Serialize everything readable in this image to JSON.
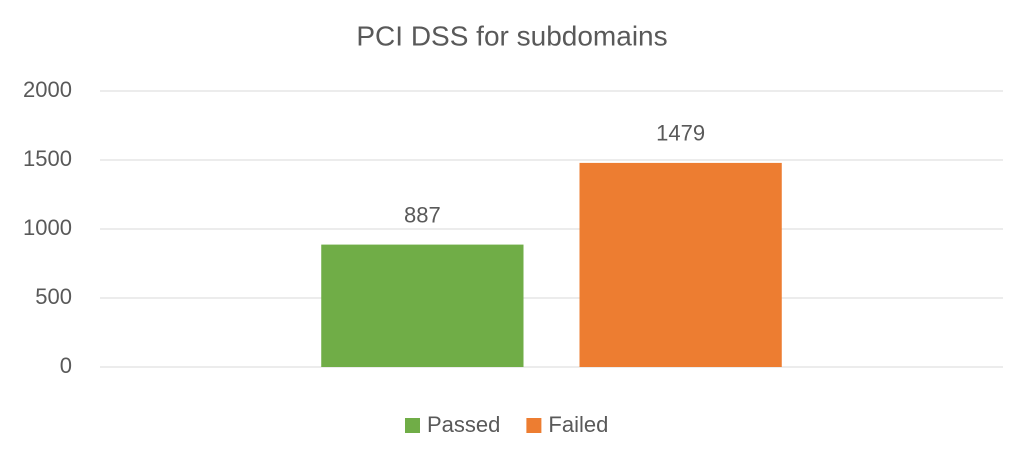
{
  "chart_data": {
    "type": "bar",
    "title": "PCI DSS for subdomains",
    "categories": [
      null
    ],
    "series": [
      {
        "name": "Passed",
        "color": "#70ad47",
        "values": [
          887
        ]
      },
      {
        "name": "Failed",
        "color": "#ed7d31",
        "values": [
          1479
        ]
      }
    ],
    "ylim": [
      0,
      2000
    ],
    "yticks": [
      0,
      500,
      1000,
      1500,
      2000
    ],
    "grid": true,
    "legend": "bottom"
  }
}
